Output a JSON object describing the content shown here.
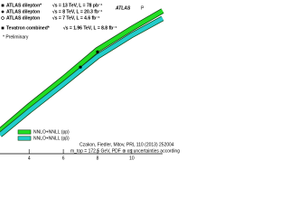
{
  "chart_data": {
    "type": "line",
    "logo": "ATLAS",
    "logo_suffix": "P",
    "measurements": [
      {
        "label": "ATLAS dilepton*",
        "detail": "√s = 13 TeV,  L = 78 pb⁻¹"
      },
      {
        "label": "ATLAS dilepton",
        "detail": "√s = 8 TeV,  L = 20.3 fb⁻¹"
      },
      {
        "label": "ATLAS dilepton",
        "detail": "√s = 7 TeV,  L = 4.6 fb⁻¹"
      },
      {
        "label": "Tevatron combined*",
        "detail": "√s = 1.96 TeV,  L = 8.8 fb⁻¹"
      }
    ],
    "note": "* Preliminary",
    "reference": "Czakon, Fiedler, Mitov, PRL 110 (2013) 252004",
    "settings": "m_top = 172.5 GeV, PDF ⊕ αs uncertainties according",
    "x": [
      2.3,
      4,
      6,
      8,
      10,
      11.8
    ],
    "series": [
      {
        "name": "NNLO+NNLL (pp)",
        "color": "#22dd22",
        "values": [
          48,
          80,
          140,
          253,
          390,
          560
        ]
      },
      {
        "name": "NNLO+NNLL (pp̄)",
        "color": "#22cccc",
        "values": [
          44,
          72,
          125,
          220,
          340,
          480
        ]
      }
    ],
    "points": {
      "x": [
        7,
        8
      ],
      "values": [
        177,
        242
      ]
    },
    "xlim": [
      2.3,
      11.8
    ],
    "xticks": [
      4,
      6,
      8,
      10
    ],
    "ylim": [
      30,
      700
    ],
    "log_y": true
  }
}
